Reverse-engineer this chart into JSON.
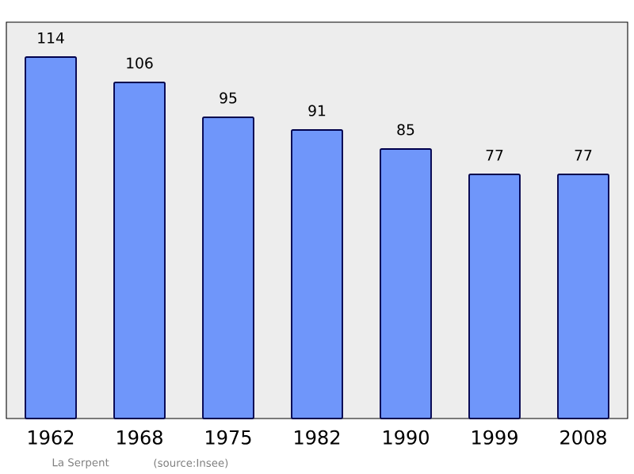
{
  "chart_data": {
    "type": "bar",
    "categories": [
      "1962",
      "1968",
      "1975",
      "1982",
      "1990",
      "1999",
      "2008"
    ],
    "values": [
      114,
      106,
      95,
      91,
      85,
      77,
      77
    ],
    "color": "#6f96fa",
    "ylim": [
      0,
      125
    ],
    "data_labels": true,
    "tick_labels": "x",
    "annotations": [
      "La Serpent",
      "(source:Insee)"
    ]
  }
}
